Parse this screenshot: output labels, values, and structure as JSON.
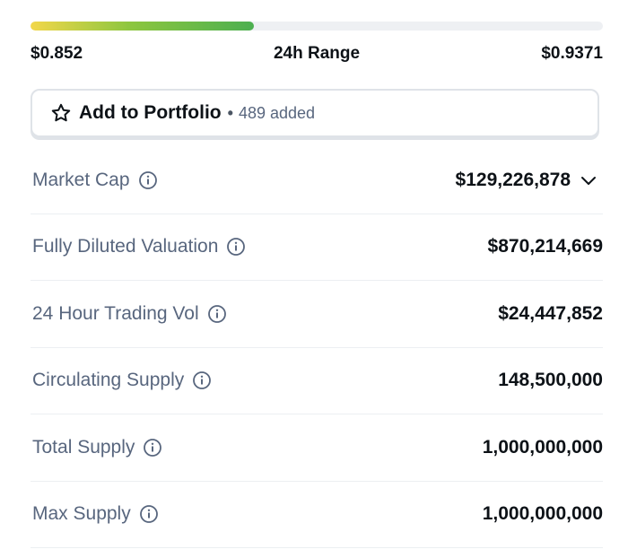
{
  "range": {
    "low": "$0.852",
    "label": "24h Range",
    "high": "$0.9371",
    "position_fraction": 0.39
  },
  "portfolio": {
    "label": "Add to Portfolio",
    "separator": "•",
    "count": "489 added",
    "icon": "star-icon"
  },
  "stats": [
    {
      "label": "Market Cap",
      "value": "$129,226,878",
      "expandable": true
    },
    {
      "label": "Fully Diluted Valuation",
      "value": "$870,214,669"
    },
    {
      "label": "24 Hour Trading Vol",
      "value": "$24,447,852"
    },
    {
      "label": "Circulating Supply",
      "value": "148,500,000"
    },
    {
      "label": "Total Supply",
      "value": "1,000,000,000"
    },
    {
      "label": "Max Supply",
      "value": "1,000,000,000"
    }
  ],
  "colors": {
    "range_start": "#f2d74a",
    "range_end": "#4caf50",
    "label": "#58667e",
    "value": "#0d1217"
  }
}
